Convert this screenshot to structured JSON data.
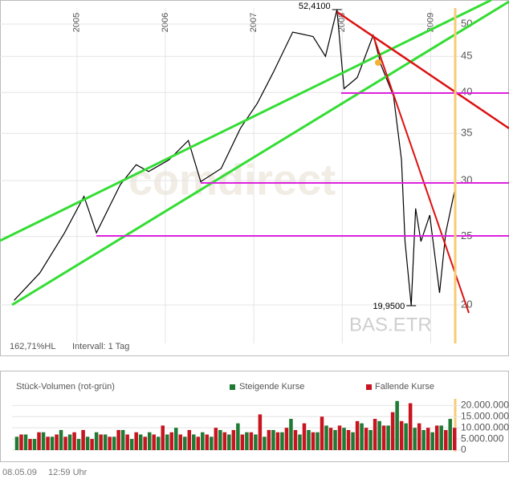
{
  "chart_data": [
    {
      "type": "line",
      "symbol": "BAS.ETR",
      "watermark": "comdirect",
      "log_scale": true,
      "color": "#000000",
      "grid": true,
      "x": [
        2004.29,
        2004.58,
        2004.86,
        2005.08,
        2005.22,
        2005.49,
        2005.67,
        2005.81,
        2006.04,
        2006.26,
        2006.4,
        2006.63,
        2006.85,
        2007.04,
        2007.22,
        2007.44,
        2007.67,
        2007.81,
        2007.94,
        2008.02,
        2008.17,
        2008.35,
        2008.44,
        2008.58,
        2008.67,
        2008.71,
        2008.78,
        2008.83,
        2008.89,
        2008.99,
        2009.1,
        2009.17,
        2009.28
      ],
      "values": [
        20.3,
        22.2,
        25.3,
        28.5,
        25.3,
        29.6,
        31.6,
        30.9,
        32.1,
        34.2,
        29.9,
        31.2,
        35.6,
        38.6,
        42.7,
        48.7,
        48.0,
        45.0,
        52.41,
        40.5,
        42.0,
        48.2,
        43.7,
        39.5,
        32.1,
        24.6,
        19.95,
        27.4,
        24.6,
        26.8,
        20.8,
        25.3,
        29.4
      ],
      "annotations": [
        {
          "text": "52,4100"
        },
        {
          "text": "19,9500"
        }
      ],
      "xlim": [
        2004.13,
        2009.35
      ],
      "xticks": [
        2005,
        2006,
        2007,
        2008,
        2009
      ],
      "ylim": [
        17.64,
        52.68
      ],
      "yticks": [
        20,
        25,
        30,
        35,
        40,
        45,
        50
      ],
      "footnotes": [
        "162,71%HL",
        "Intervall: 1 Tag"
      ]
    },
    {
      "type": "bar",
      "title": "Stück-Volumen (rot-grün)",
      "x": [
        2004.3,
        2004.4,
        2004.5,
        2004.6,
        2004.7,
        2004.8,
        2004.9,
        2005.0,
        2005.1,
        2005.2,
        2005.3,
        2005.4,
        2005.5,
        2005.6,
        2005.7,
        2005.8,
        2005.9,
        2006.0,
        2006.1,
        2006.2,
        2006.3,
        2006.4,
        2006.5,
        2006.6,
        2006.7,
        2006.8,
        2006.9,
        2007.0,
        2007.1,
        2007.2,
        2007.3,
        2007.4,
        2007.5,
        2007.6,
        2007.7,
        2007.8,
        2007.9,
        2008.0,
        2008.1,
        2008.2,
        2008.3,
        2008.4,
        2008.5,
        2008.6,
        2008.7,
        2008.8,
        2008.9,
        2009.0,
        2009.1,
        2009.2
      ],
      "series": [
        {
          "name": "Steigende Kurse",
          "color": "#1f7a33",
          "values": [
            6000000,
            7000000,
            5000000,
            8000000,
            6000000,
            9000000,
            7000000,
            5000000,
            6000000,
            8000000,
            7000000,
            6000000,
            9000000,
            5000000,
            7000000,
            8000000,
            6000000,
            7000000,
            10000000,
            6000000,
            7000000,
            8000000,
            6000000,
            9000000,
            7000000,
            12000000,
            8000000,
            7000000,
            6000000,
            9000000,
            8000000,
            14000000,
            7000000,
            9000000,
            8000000,
            11000000,
            9000000,
            10000000,
            8000000,
            12000000,
            9000000,
            13000000,
            11000000,
            22000000,
            12000000,
            10000000,
            9000000,
            8000000,
            11000000,
            14000000
          ]
        },
        {
          "name": "Fallende Kurse",
          "color": "#c8141e",
          "values": [
            7000000,
            5000000,
            8000000,
            6000000,
            7000000,
            6000000,
            8000000,
            9000000,
            5000000,
            7000000,
            6000000,
            9000000,
            7000000,
            8000000,
            6000000,
            7000000,
            11000000,
            8000000,
            7000000,
            9000000,
            6000000,
            7000000,
            10000000,
            8000000,
            9000000,
            7000000,
            8000000,
            16000000,
            9000000,
            8000000,
            10000000,
            9000000,
            12000000,
            8000000,
            15000000,
            10000000,
            11000000,
            9000000,
            13000000,
            10000000,
            14000000,
            11000000,
            17000000,
            13000000,
            21000000,
            12000000,
            10000000,
            11000000,
            9000000,
            10000000
          ]
        }
      ],
      "xlim": [
        2004.13,
        2009.35
      ],
      "ylim": [
        0,
        23000000
      ],
      "yticks": [
        0,
        {
          "value": 5000000,
          "label": "5.000.000"
        },
        {
          "value": 10000000,
          "label": "10.000.000"
        },
        {
          "value": 15000000,
          "label": "15.000.000"
        },
        {
          "value": 20000000,
          "label": "20.000.000"
        }
      ]
    }
  ],
  "footer": {
    "date": "08.05.09",
    "time": "12:59 Uhr"
  }
}
